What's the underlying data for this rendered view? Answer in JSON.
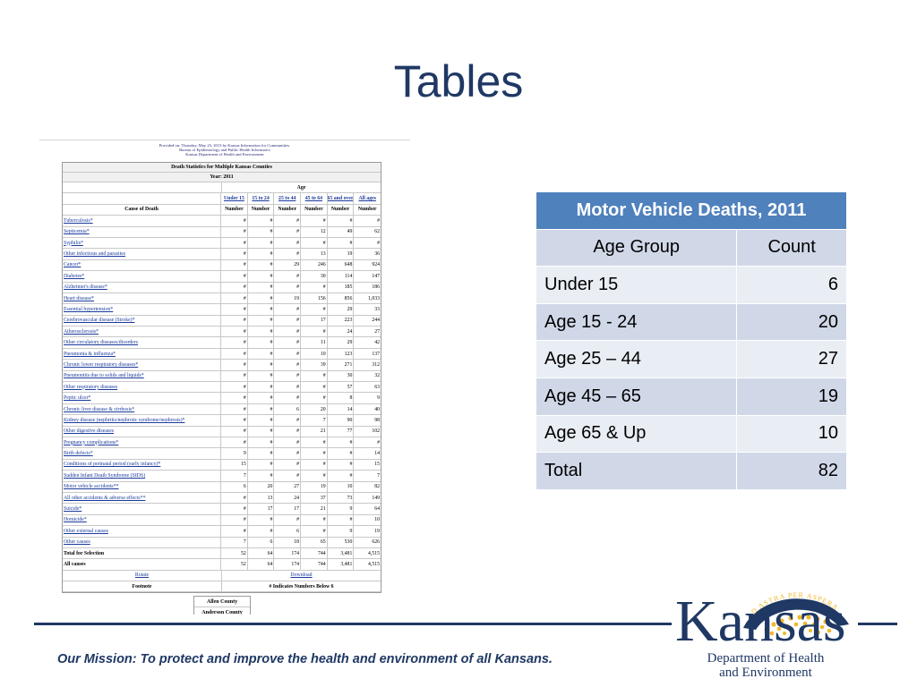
{
  "slide": {
    "title": "Tables"
  },
  "report": {
    "header_lines": [
      "Provided on: Thursday, May 23, 2013 by Kansas Information for Communities.",
      "Bureau of Epidemiology and Public Health Informatics",
      "Kansas Department of Health and Environment"
    ],
    "banner_title": "Death Statistics for Multiple Kansas Counties",
    "year": "Year: 2011",
    "age_label": "Age",
    "age_groups": [
      "Under 15",
      "15 to 24",
      "25 to 44",
      "45 to 64",
      "65 and over",
      "All ages"
    ],
    "cause_header": "Cause of Death",
    "number_label": "Number",
    "rows": [
      {
        "cause": "Tuberculosis*",
        "v": [
          "#",
          "#",
          "#",
          "#",
          "#",
          "#"
        ]
      },
      {
        "cause": "Septicemia*",
        "v": [
          "#",
          "#",
          "#",
          "12",
          "49",
          "62"
        ]
      },
      {
        "cause": "Syphilis*",
        "v": [
          "#",
          "#",
          "#",
          "#",
          "#",
          "#"
        ]
      },
      {
        "cause": "Other infectious and parasites",
        "v": [
          "#",
          "#",
          "#",
          "13",
          "19",
          "36"
        ]
      },
      {
        "cause": "Cancer*",
        "v": [
          "#",
          "#",
          "29",
          "246",
          "648",
          "924"
        ]
      },
      {
        "cause": "Diabetes*",
        "v": [
          "#",
          "#",
          "#",
          "30",
          "114",
          "147"
        ]
      },
      {
        "cause": "Alzheimer's disease*",
        "v": [
          "#",
          "#",
          "#",
          "#",
          "185",
          "186"
        ]
      },
      {
        "cause": "Heart disease*",
        "v": [
          "#",
          "#",
          "19",
          "156",
          "856",
          "1,033"
        ]
      },
      {
        "cause": "Essential hypertension*",
        "v": [
          "#",
          "#",
          "#",
          "#",
          "29",
          "33"
        ]
      },
      {
        "cause": "Cerebrovascular disease (Stroke)*",
        "v": [
          "#",
          "#",
          "#",
          "17",
          "223",
          "244"
        ]
      },
      {
        "cause": "Atherosclerosis*",
        "v": [
          "#",
          "#",
          "#",
          "#",
          "24",
          "27"
        ]
      },
      {
        "cause": "Other circulatory diseases/disorders",
        "v": [
          "#",
          "#",
          "#",
          "11",
          "29",
          "42"
        ]
      },
      {
        "cause": "Pneumonia & influenza*",
        "v": [
          "#",
          "#",
          "#",
          "10",
          "123",
          "137"
        ]
      },
      {
        "cause": "Chronic lower respiratory diseases*",
        "v": [
          "#",
          "#",
          "#",
          "39",
          "271",
          "312"
        ]
      },
      {
        "cause": "Pneumonitis due to solids and liquids*",
        "v": [
          "#",
          "#",
          "#",
          "#",
          "30",
          "32"
        ]
      },
      {
        "cause": "Other respiratory diseases",
        "v": [
          "#",
          "#",
          "#",
          "#",
          "57",
          "63"
        ]
      },
      {
        "cause": "Peptic ulcer*",
        "v": [
          "#",
          "#",
          "#",
          "#",
          "8",
          "9"
        ]
      },
      {
        "cause": "Chronic liver disease & cirrhosis*",
        "v": [
          "#",
          "#",
          "6",
          "20",
          "14",
          "40"
        ]
      },
      {
        "cause": "Kidney disease (nephritis/nephrotic syndrome/nephrosis)*",
        "v": [
          "#",
          "#",
          "#",
          "7",
          "90",
          "98"
        ]
      },
      {
        "cause": "Other digestive diseases",
        "v": [
          "#",
          "#",
          "#",
          "21",
          "77",
          "102"
        ]
      },
      {
        "cause": "Pregnancy complications*",
        "v": [
          "#",
          "#",
          "#",
          "#",
          "#",
          "#"
        ]
      },
      {
        "cause": "Birth defects*",
        "v": [
          "9",
          "#",
          "#",
          "#",
          "#",
          "14"
        ]
      },
      {
        "cause": "Conditions of perinatal period (early infancy)*",
        "v": [
          "15",
          "#",
          "#",
          "#",
          "#",
          "15"
        ]
      },
      {
        "cause": "Sudden Infant Death Syndrome (SIDS)",
        "v": [
          "7",
          "#",
          "#",
          "#",
          "#",
          "7"
        ]
      },
      {
        "cause": "Motor vehicle accidents**",
        "v": [
          "6",
          "20",
          "27",
          "19",
          "10",
          "82"
        ]
      },
      {
        "cause": "All other accidents & adverse effects**",
        "v": [
          "#",
          "13",
          "24",
          "37",
          "73",
          "149"
        ]
      },
      {
        "cause": "Suicide*",
        "v": [
          "#",
          "17",
          "17",
          "21",
          "9",
          "64"
        ]
      },
      {
        "cause": "Homicide*",
        "v": [
          "#",
          "#",
          "#",
          "#",
          "#",
          "10"
        ]
      },
      {
        "cause": "Other external causes",
        "v": [
          "#",
          "#",
          "6",
          "#",
          "9",
          "19"
        ]
      },
      {
        "cause": "Other causes",
        "v": [
          "7",
          "6",
          "18",
          "65",
          "530",
          "626"
        ]
      }
    ],
    "total_selection": {
      "cause": "Total for Selection",
      "v": [
        "52",
        "64",
        "174",
        "744",
        "3,481",
        "4,515"
      ]
    },
    "all_causes": {
      "cause": "All causes",
      "v": [
        "52",
        "64",
        "174",
        "744",
        "3,481",
        "4,515"
      ]
    },
    "rotate_label": "Rotate",
    "download_label": "Download",
    "footnote_label": "Footnote",
    "footnote_text": "# Indicates Numbers Below 6",
    "counties": [
      "Allen County",
      "Anderson County"
    ]
  },
  "mv_table": {
    "title": "Motor Vehicle Deaths, 2011",
    "col_age": "Age Group",
    "col_count": "Count",
    "rows": [
      {
        "label": "Under 15",
        "count": "6"
      },
      {
        "label": "Age 15 - 24",
        "count": "20"
      },
      {
        "label": "Age 25 – 44",
        "count": "27"
      },
      {
        "label": "Age 45 – 65",
        "count": "19"
      },
      {
        "label": "Age 65 & Up",
        "count": "10"
      },
      {
        "label": "Total",
        "count": "82"
      }
    ]
  },
  "footer": {
    "mission": "Our Mission: To protect and improve the health and environment of all Kansans.",
    "logo_word": "Kansas",
    "logo_motto": "AD ASTRA PER ASPERA",
    "logo_dept_line1": "Department of Health",
    "logo_dept_line2": "and Environment"
  },
  "colors": {
    "brand_navy": "#1f3864",
    "table_header": "#4f81bd",
    "row_light": "#e9edf4",
    "row_dark": "#d0d8e8",
    "logo_gold": "#f2b82e"
  }
}
